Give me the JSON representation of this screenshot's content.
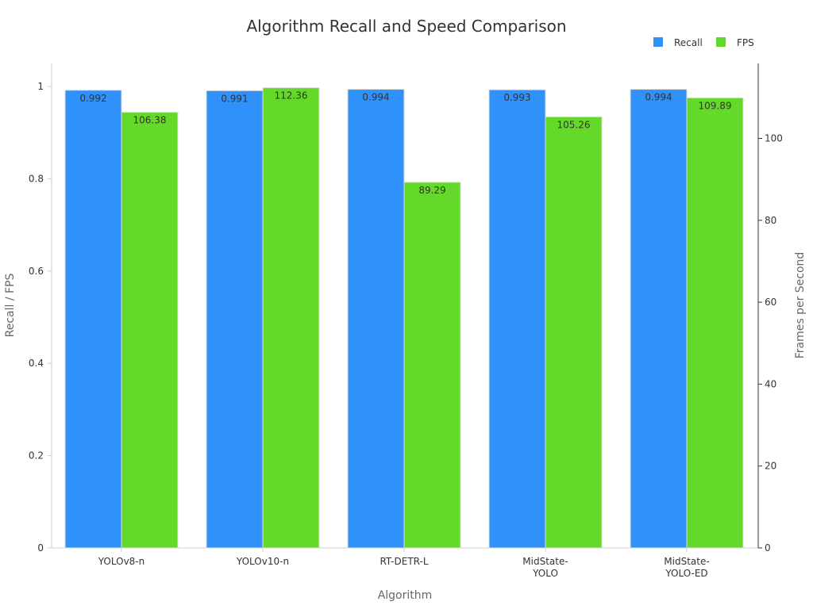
{
  "chart_data": {
    "type": "bar",
    "title": "Algorithm Recall and Speed Comparison",
    "xlabel": "Algorithm",
    "ylabel": "Recall / FPS",
    "y2label": "Frames per Second",
    "categories": [
      [
        "YOLOv8-n"
      ],
      [
        "YOLOv10-n"
      ],
      [
        "RT-DETR-L"
      ],
      [
        "MidState-",
        "YOLO"
      ],
      [
        "MidState-",
        "YOLO-ED"
      ]
    ],
    "series": [
      {
        "name": "Recall",
        "axis": "left",
        "color": "#2f91f9",
        "values": [
          0.992,
          0.991,
          0.994,
          0.993,
          0.994
        ],
        "labels": [
          "0.992",
          "0.991",
          "0.994",
          "0.993",
          "0.994"
        ]
      },
      {
        "name": "FPS",
        "axis": "right",
        "color": "#65d929",
        "values": [
          106.38,
          112.36,
          89.29,
          105.26,
          109.89
        ],
        "labels": [
          "106.38",
          "112.36",
          "89.29",
          "105.26",
          "109.89"
        ]
      }
    ],
    "ylim": [
      0,
      1.05
    ],
    "y2lim": [
      0,
      118.3
    ],
    "yticks": [
      0,
      0.2,
      0.4,
      0.6,
      0.8,
      1
    ],
    "ytick_labels": [
      "0",
      "0.2",
      "0.4",
      "0.6",
      "0.8",
      "1"
    ],
    "y2ticks": [
      0,
      20,
      40,
      60,
      80,
      100
    ],
    "y2tick_labels": [
      "0",
      "20",
      "40",
      "60",
      "80",
      "100"
    ],
    "legend_position": "top-right",
    "grid": false
  }
}
